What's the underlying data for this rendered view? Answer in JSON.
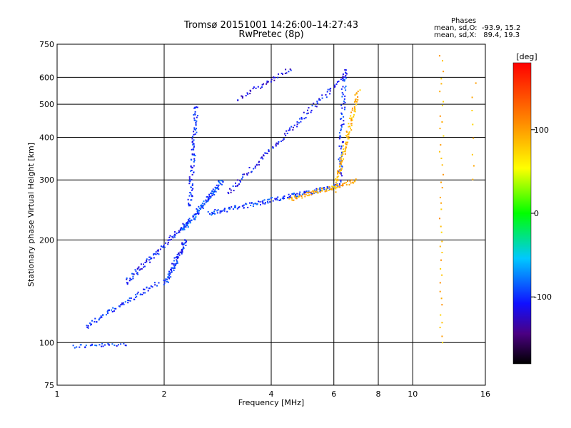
{
  "header": {
    "title_line1": "Tromsø 20151001 14:26:00–14:27:43",
    "title_line2": "RwPretec (8p)",
    "phases_title": "Phases",
    "phases_o": "mean, sd,O:  -93.9, 15.2",
    "phases_x": "mean, sd,X:   89.4, 19.3"
  },
  "chart_data": {
    "type": "scatter",
    "title": "Tromsø 20151001 14:26:00–14:27:43",
    "subtitle": "RwPretec (8p)",
    "xlabel": "Frequency [MHz]",
    "ylabel": "Stationary phase Virtual Height [km]",
    "x_scale": "log",
    "y_scale": "log",
    "xlim": [
      1,
      16
    ],
    "ylim": [
      75,
      750
    ],
    "x_ticks": [
      1,
      2,
      4,
      6,
      8,
      10,
      16
    ],
    "x_tick_labels": [
      "1",
      "2",
      "4",
      "6",
      "8",
      "10",
      "16"
    ],
    "y_ticks": [
      75,
      100,
      200,
      300,
      400,
      500,
      600,
      750
    ],
    "y_tick_labels": [
      "75",
      "100",
      "200",
      "300",
      "400",
      "500",
      "600",
      "750"
    ],
    "grid": true,
    "color_scale": {
      "label": "[deg]",
      "range": [
        -180,
        180
      ],
      "ticks": [
        100,
        0,
        -100
      ],
      "tick_labels": [
        "100",
        "0",
        "-100"
      ]
    },
    "series": [
      {
        "mode": "O",
        "color_hint": "blue/purple (phase near -100 deg)",
        "segments": [
          {
            "f_start": 1.1,
            "f_end": 1.55,
            "h_start": 98,
            "h_end": 99,
            "points": 30,
            "phase": -95
          },
          {
            "f_start": 1.2,
            "f_end": 1.9,
            "h_start": 112,
            "h_end": 150,
            "points": 70,
            "phase": -100
          },
          {
            "f_start": 1.55,
            "f_end": 2.3,
            "h_start": 150,
            "h_end": 225,
            "points": 90,
            "phase": -105
          },
          {
            "f_start": 2.0,
            "f_end": 2.3,
            "h_start": 150,
            "h_end": 200,
            "points": 80,
            "phase": -100
          },
          {
            "f_start": 2.25,
            "f_end": 2.9,
            "h_start": 215,
            "h_end": 300,
            "points": 120,
            "phase": -90
          },
          {
            "f_start": 2.35,
            "f_end": 2.45,
            "h_start": 250,
            "h_end": 500,
            "points": 90,
            "phase": -100
          },
          {
            "f_start": 2.65,
            "f_end": 6.2,
            "h_start": 240,
            "h_end": 290,
            "points": 150,
            "phase": -95
          },
          {
            "f_start": 3.0,
            "f_end": 6.5,
            "h_start": 275,
            "h_end": 620,
            "points": 120,
            "phase": -110
          },
          {
            "f_start": 6.2,
            "f_end": 6.4,
            "h_start": 300,
            "h_end": 640,
            "points": 70,
            "phase": -100
          },
          {
            "f_start": 3.2,
            "f_end": 4.5,
            "h_start": 520,
            "h_end": 640,
            "points": 40,
            "phase": -115
          }
        ]
      },
      {
        "mode": "X",
        "color_hint": "yellow (phase near +90 deg)",
        "segments": [
          {
            "f_start": 4.5,
            "f_end": 6.9,
            "h_start": 265,
            "h_end": 300,
            "points": 80,
            "phase": 95
          },
          {
            "f_start": 6.0,
            "f_end": 7.0,
            "h_start": 280,
            "h_end": 550,
            "points": 110,
            "phase": 90
          },
          {
            "f_start": 12.0,
            "f_end": 12.0,
            "h_start": 100,
            "h_end": 700,
            "points": 40,
            "phase": 90
          },
          {
            "f_start": 14.8,
            "f_end": 14.8,
            "h_start": 300,
            "h_end": 580,
            "points": 8,
            "phase": 80
          }
        ]
      }
    ]
  }
}
